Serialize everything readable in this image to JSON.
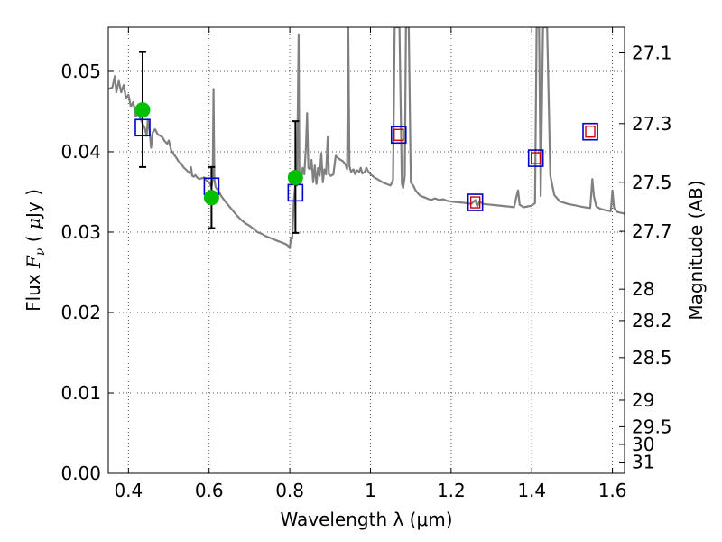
{
  "chart_data": {
    "type": "line",
    "title": "",
    "xlabel": "Wavelength  λ (μm)",
    "ylabel": "Flux  Fν  ( μJy )",
    "ylabel_right": "Magnitude (AB)",
    "xlim": [
      0.35,
      1.63
    ],
    "ylim": [
      0.0,
      0.0555
    ],
    "grid": true,
    "grid_style": "dotted",
    "x_ticks": [
      0.4,
      0.6,
      0.8,
      1.0,
      1.2,
      1.4,
      1.6
    ],
    "x_tick_labels": [
      "0.4",
      "0.6",
      "0.8",
      "1",
      "1.2",
      "1.4",
      "1.6"
    ],
    "y_ticks": [
      0.0,
      0.01,
      0.02,
      0.03,
      0.04,
      0.05
    ],
    "y_tick_labels": [
      "0.00",
      "0.01",
      "0.02",
      "0.03",
      "0.04",
      "0.05"
    ],
    "right_ticks": [
      {
        "label": "27.1",
        "flux": 0.0523
      },
      {
        "label": "27.3",
        "flux": 0.0435
      },
      {
        "label": "27.5",
        "flux": 0.0362
      },
      {
        "label": "27.7",
        "flux": 0.0301
      },
      {
        "label": "28",
        "flux": 0.0229
      },
      {
        "label": "28.2",
        "flux": 0.019
      },
      {
        "label": "28.5",
        "flux": 0.0144
      },
      {
        "label": "29",
        "flux": 0.0091
      },
      {
        "label": "29.5",
        "flux": 0.0058
      },
      {
        "label": "30",
        "flux": 0.0036
      },
      {
        "label": "31",
        "flux": 0.0014
      }
    ],
    "colors": {
      "model": "#808080",
      "observed": "#00c000",
      "model_photometry": "#0000cc",
      "model_photometry_inner": "#cc0000",
      "error_bar": "#000000",
      "grid": "#555555"
    },
    "series": [
      {
        "kind": "model-spectrum",
        "points": [
          [
            0.35,
            0.0478
          ],
          [
            0.36,
            0.048
          ],
          [
            0.366,
            0.0494
          ],
          [
            0.37,
            0.0474
          ],
          [
            0.376,
            0.0488
          ],
          [
            0.382,
            0.0474
          ],
          [
            0.388,
            0.0483
          ],
          [
            0.394,
            0.0466
          ],
          [
            0.4,
            0.0471
          ],
          [
            0.406,
            0.0456
          ],
          [
            0.412,
            0.0462
          ],
          [
            0.418,
            0.0444
          ],
          [
            0.424,
            0.0447
          ],
          [
            0.43,
            0.0441
          ],
          [
            0.436,
            0.0434
          ],
          [
            0.44,
            0.043
          ],
          [
            0.445,
            0.042
          ],
          [
            0.448,
            0.044
          ],
          [
            0.452,
            0.0427
          ],
          [
            0.456,
            0.0405
          ],
          [
            0.46,
            0.0424
          ],
          [
            0.466,
            0.0428
          ],
          [
            0.472,
            0.0422
          ],
          [
            0.478,
            0.042
          ],
          [
            0.484,
            0.0418
          ],
          [
            0.49,
            0.0413
          ],
          [
            0.496,
            0.041
          ],
          [
            0.5,
            0.0414
          ],
          [
            0.506,
            0.0402
          ],
          [
            0.512,
            0.0397
          ],
          [
            0.518,
            0.0393
          ],
          [
            0.524,
            0.0388
          ],
          [
            0.53,
            0.0386
          ],
          [
            0.536,
            0.0381
          ],
          [
            0.542,
            0.0378
          ],
          [
            0.548,
            0.0375
          ],
          [
            0.552,
            0.0373
          ],
          [
            0.555,
            0.0381
          ],
          [
            0.558,
            0.037
          ],
          [
            0.562,
            0.0369
          ],
          [
            0.566,
            0.0371
          ],
          [
            0.57,
            0.0368
          ],
          [
            0.576,
            0.0366
          ],
          [
            0.582,
            0.0367
          ],
          [
            0.588,
            0.0368
          ],
          [
            0.594,
            0.0364
          ],
          [
            0.6,
            0.0362
          ],
          [
            0.606,
            0.0356
          ],
          [
            0.609,
            0.0366
          ],
          [
            0.611,
            0.0478
          ],
          [
            0.613,
            0.0366
          ],
          [
            0.616,
            0.0356
          ],
          [
            0.622,
            0.0352
          ],
          [
            0.63,
            0.0345
          ],
          [
            0.64,
            0.0338
          ],
          [
            0.65,
            0.0332
          ],
          [
            0.66,
            0.0326
          ],
          [
            0.67,
            0.032
          ],
          [
            0.68,
            0.0315
          ],
          [
            0.69,
            0.0311
          ],
          [
            0.7,
            0.0308
          ],
          [
            0.71,
            0.0304
          ],
          [
            0.72,
            0.03
          ],
          [
            0.73,
            0.0298
          ],
          [
            0.74,
            0.0295
          ],
          [
            0.75,
            0.0293
          ],
          [
            0.76,
            0.0291
          ],
          [
            0.77,
            0.0289
          ],
          [
            0.78,
            0.0287
          ],
          [
            0.79,
            0.0285
          ],
          [
            0.796,
            0.0283
          ],
          [
            0.8,
            0.028
          ],
          [
            0.803,
            0.0293
          ],
          [
            0.806,
            0.0292
          ],
          [
            0.81,
            0.034
          ],
          [
            0.814,
            0.036
          ],
          [
            0.818,
            0.0358
          ],
          [
            0.822,
            0.0545
          ],
          [
            0.824,
            0.036
          ],
          [
            0.828,
            0.0362
          ],
          [
            0.832,
            0.038
          ],
          [
            0.836,
            0.0372
          ],
          [
            0.84,
            0.0406
          ],
          [
            0.843,
            0.0448
          ],
          [
            0.846,
            0.038
          ],
          [
            0.85,
            0.0378
          ],
          [
            0.854,
            0.039
          ],
          [
            0.858,
            0.0362
          ],
          [
            0.862,
            0.0383
          ],
          [
            0.866,
            0.036
          ],
          [
            0.87,
            0.038
          ],
          [
            0.874,
            0.037
          ],
          [
            0.878,
            0.0398
          ],
          [
            0.882,
            0.0362
          ],
          [
            0.886,
            0.0378
          ],
          [
            0.89,
            0.0372
          ],
          [
            0.894,
            0.0418
          ],
          [
            0.897,
            0.0372
          ],
          [
            0.902,
            0.037
          ],
          [
            0.908,
            0.0372
          ],
          [
            0.914,
            0.0395
          ],
          [
            0.92,
            0.0392
          ],
          [
            0.926,
            0.039
          ],
          [
            0.932,
            0.0388
          ],
          [
            0.938,
            0.0384
          ],
          [
            0.942,
            0.0378
          ],
          [
            0.945,
            0.0555
          ],
          [
            0.948,
            0.0382
          ],
          [
            0.952,
            0.0375
          ],
          [
            0.958,
            0.0378
          ],
          [
            0.962,
            0.0372
          ],
          [
            0.966,
            0.0377
          ],
          [
            0.972,
            0.0375
          ],
          [
            0.976,
            0.038
          ],
          [
            0.98,
            0.0373
          ],
          [
            0.986,
            0.0375
          ],
          [
            0.99,
            0.038
          ],
          [
            0.994,
            0.0376
          ],
          [
            1.0,
            0.0372
          ],
          [
            1.01,
            0.0368
          ],
          [
            1.02,
            0.0365
          ],
          [
            1.03,
            0.0362
          ],
          [
            1.04,
            0.036
          ],
          [
            1.05,
            0.0358
          ],
          [
            1.056,
            0.0365
          ],
          [
            1.06,
            0.0555
          ],
          [
            1.072,
            0.0555
          ],
          [
            1.078,
            0.036
          ],
          [
            1.081,
            0.0355
          ],
          [
            1.085,
            0.037
          ],
          [
            1.088,
            0.0555
          ],
          [
            1.095,
            0.0555
          ],
          [
            1.1,
            0.0362
          ],
          [
            1.106,
            0.0358
          ],
          [
            1.112,
            0.0352
          ],
          [
            1.118,
            0.0348
          ],
          [
            1.124,
            0.0345
          ],
          [
            1.13,
            0.0344
          ],
          [
            1.14,
            0.0342
          ],
          [
            1.15,
            0.034
          ],
          [
            1.16,
            0.0342
          ],
          [
            1.17,
            0.034
          ],
          [
            1.18,
            0.0341
          ],
          [
            1.19,
            0.0339
          ],
          [
            1.2,
            0.0338
          ],
          [
            1.22,
            0.0337
          ],
          [
            1.24,
            0.0336
          ],
          [
            1.25,
            0.0335
          ],
          [
            1.26,
            0.034
          ],
          [
            1.265,
            0.0332
          ],
          [
            1.27,
            0.0338
          ],
          [
            1.28,
            0.0335
          ],
          [
            1.3,
            0.0334
          ],
          [
            1.32,
            0.0333
          ],
          [
            1.34,
            0.0332
          ],
          [
            1.356,
            0.0331
          ],
          [
            1.362,
            0.0344
          ],
          [
            1.366,
            0.0352
          ],
          [
            1.37,
            0.0334
          ],
          [
            1.38,
            0.0331
          ],
          [
            1.39,
            0.0332
          ],
          [
            1.4,
            0.0333
          ],
          [
            1.408,
            0.0336
          ],
          [
            1.412,
            0.0555
          ],
          [
            1.418,
            0.0555
          ],
          [
            1.422,
            0.0345
          ],
          [
            1.428,
            0.0555
          ],
          [
            1.438,
            0.0555
          ],
          [
            1.446,
            0.037
          ],
          [
            1.456,
            0.0346
          ],
          [
            1.47,
            0.0338
          ],
          [
            1.49,
            0.0335
          ],
          [
            1.51,
            0.0333
          ],
          [
            1.53,
            0.0331
          ],
          [
            1.545,
            0.033
          ],
          [
            1.55,
            0.0366
          ],
          [
            1.554,
            0.0345
          ],
          [
            1.56,
            0.0332
          ],
          [
            1.57,
            0.0329
          ],
          [
            1.585,
            0.0327
          ],
          [
            1.596,
            0.0326
          ],
          [
            1.6,
            0.0352
          ],
          [
            1.604,
            0.033
          ],
          [
            1.612,
            0.0325
          ],
          [
            1.63,
            0.0323
          ]
        ]
      },
      {
        "kind": "observed-photometry",
        "points": [
          {
            "x": 0.435,
            "y": 0.0452,
            "err_low": 0.0381,
            "err_high": 0.0524
          },
          {
            "x": 0.606,
            "y": 0.0343,
            "err_low": 0.0305,
            "err_high": 0.0381
          },
          {
            "x": 0.814,
            "y": 0.0368,
            "err_low": 0.0299,
            "err_high": 0.0438
          }
        ]
      },
      {
        "kind": "model-photometry",
        "points": [
          {
            "x": 0.435,
            "y": 0.043,
            "inner": false
          },
          {
            "x": 0.606,
            "y": 0.0357,
            "inner": false
          },
          {
            "x": 0.814,
            "y": 0.0349,
            "inner": false
          },
          {
            "x": 1.07,
            "y": 0.0421,
            "inner": true
          },
          {
            "x": 1.26,
            "y": 0.0337,
            "inner": true
          },
          {
            "x": 1.41,
            "y": 0.0392,
            "inner": true
          },
          {
            "x": 1.545,
            "y": 0.0425,
            "inner": true
          }
        ]
      }
    ]
  }
}
